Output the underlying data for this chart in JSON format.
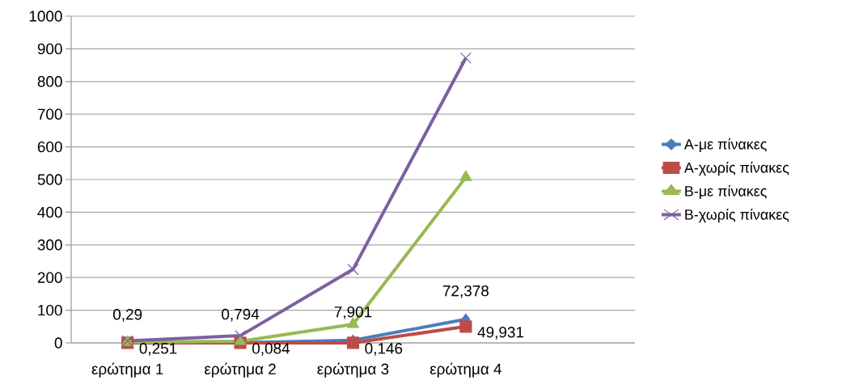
{
  "chart_data": {
    "type": "line",
    "categories": [
      "ερώτημα 1",
      "ερώτημα 2",
      "ερώτημα 3",
      "ερώτημα 4",
      null
    ],
    "ylim": [
      0,
      1000
    ],
    "yticks": [
      0,
      100,
      200,
      300,
      400,
      500,
      600,
      700,
      800,
      900,
      1000
    ],
    "grid": "y",
    "legend": "right",
    "line_style": "solid",
    "series": [
      {
        "name": "A-με πίνακες",
        "color": "#4a7ebb",
        "marker": "diamond",
        "values": [
          0.29,
          0.794,
          7.901,
          72.378,
          null
        ],
        "value_labels": [
          "0,29",
          "0,794",
          "7,901",
          "72,378",
          null
        ]
      },
      {
        "name": "A-χωρίς πίνακες",
        "color": "#be4b48",
        "marker": "square",
        "values": [
          0.251,
          0.084,
          0.146,
          49.931,
          null
        ],
        "value_labels": [
          "0,251",
          "0,084",
          "0,146",
          "49,931",
          null
        ]
      },
      {
        "name": "B-με πίνακες",
        "color": "#98b954",
        "marker": "triangle",
        "values": [
          2,
          5,
          57,
          507,
          null
        ]
      },
      {
        "name": "B-χωρίς πίνακες",
        "color": "#7d60a0",
        "marker": "cross",
        "values": [
          6,
          22,
          225,
          872,
          null
        ]
      }
    ]
  }
}
